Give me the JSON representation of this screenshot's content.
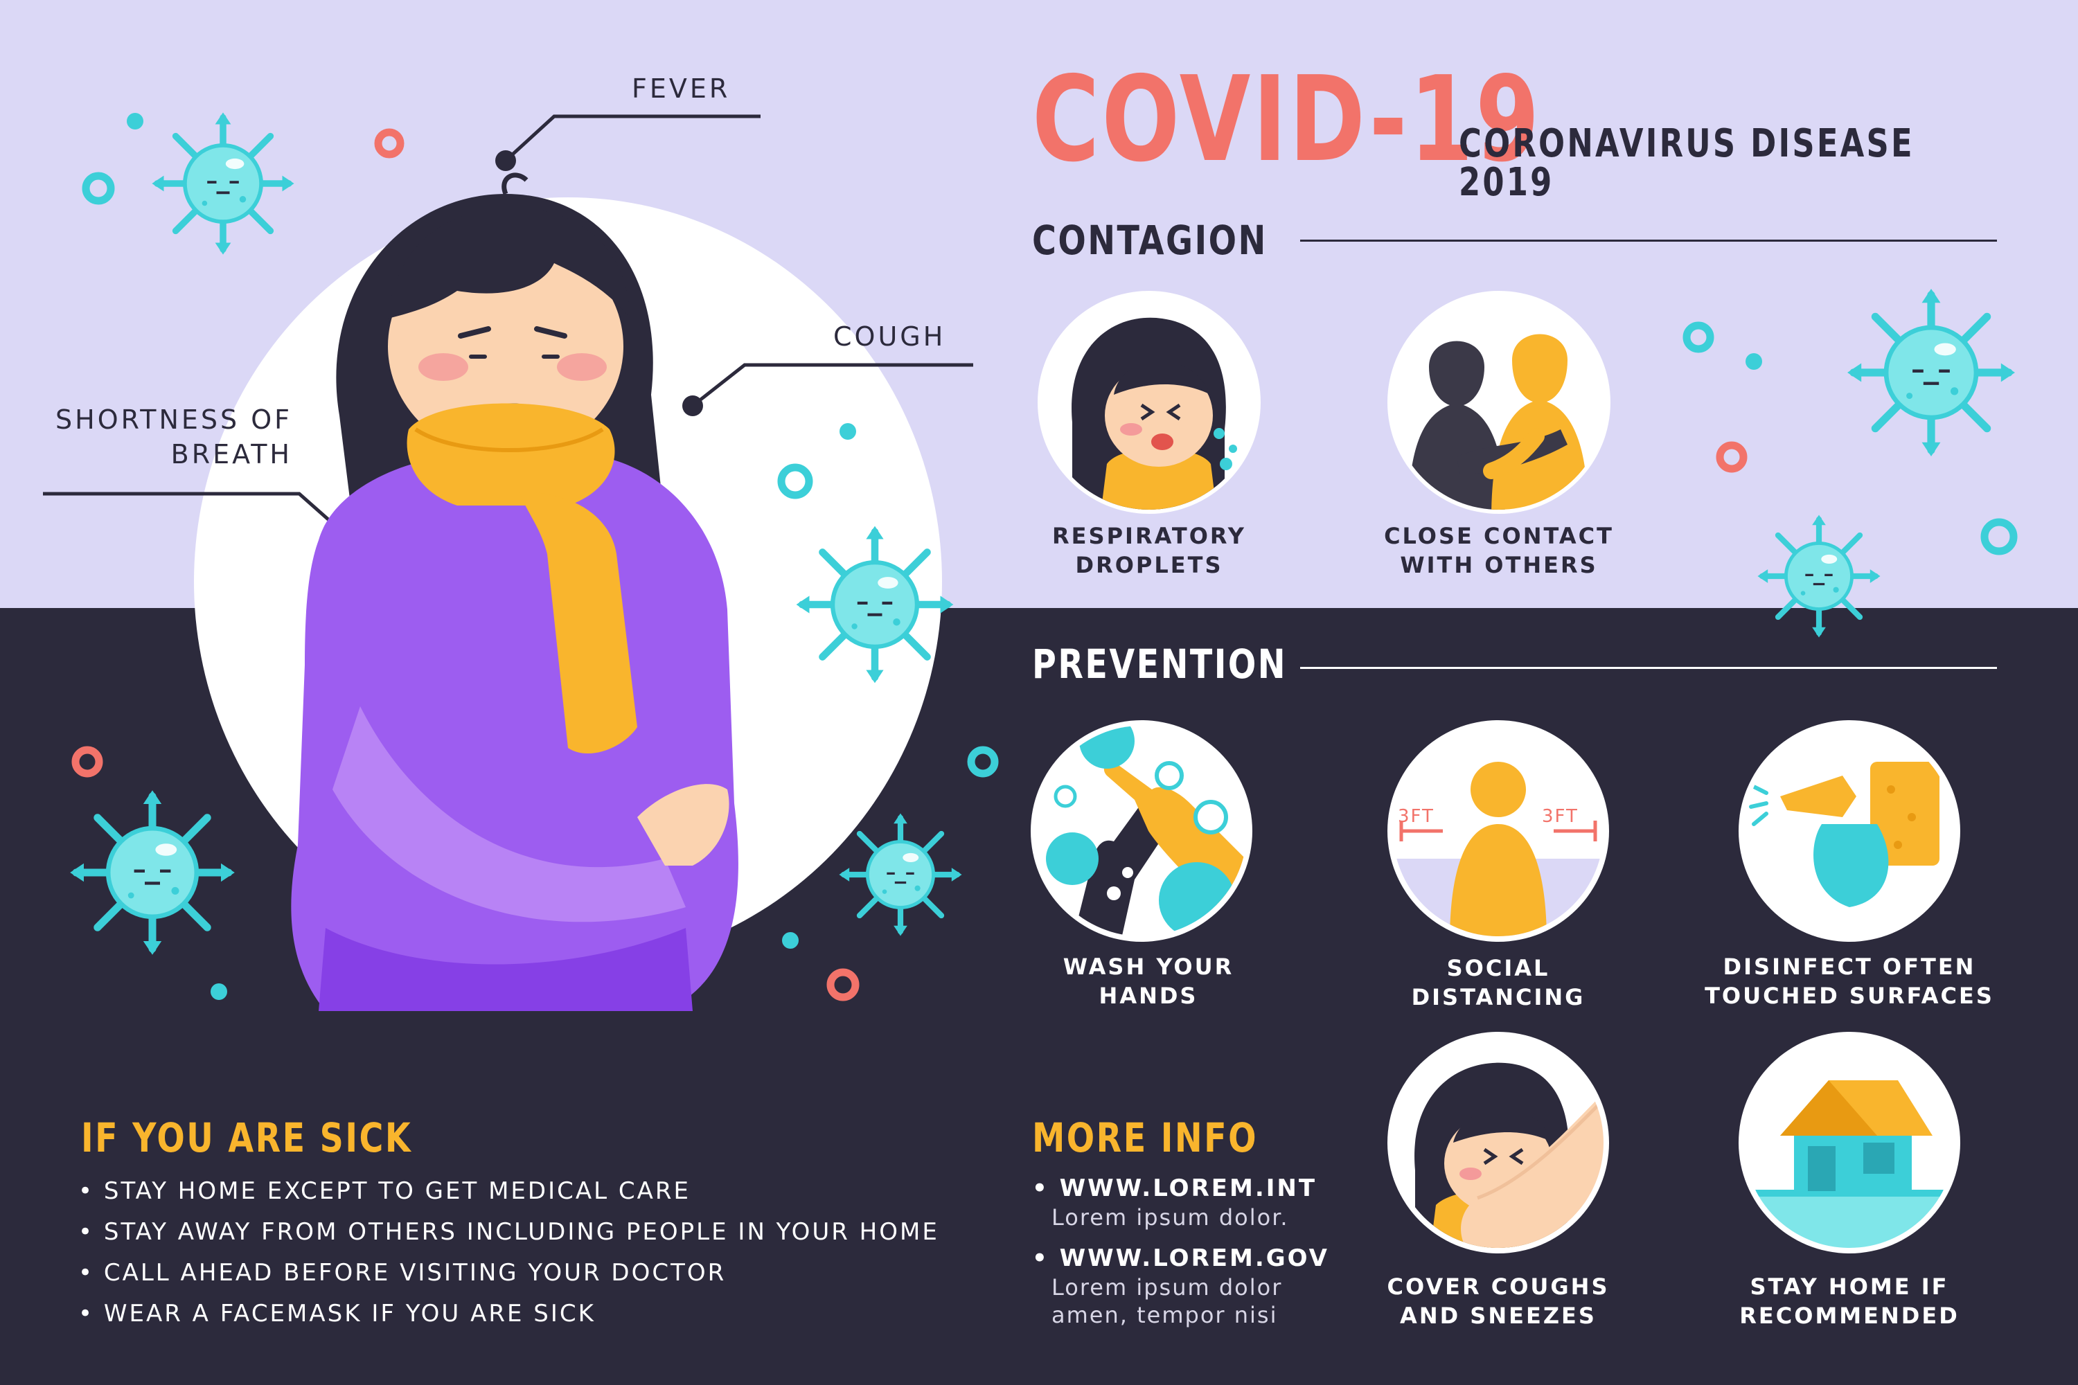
{
  "header": {
    "title": "COVID-19",
    "subtitle": "CORONAVIRUS DISEASE 2019"
  },
  "symptoms": {
    "fever": "FEVER",
    "cough": "COUGH",
    "shortness_line1": "SHORTNESS OF",
    "shortness_line2": "BREATH"
  },
  "contagion": {
    "heading": "CONTAGION",
    "items": [
      {
        "line1": "RESPIRATORY",
        "line2": "DROPLETS",
        "icon": "sneezing-person-icon"
      },
      {
        "line1": "CLOSE CONTACT",
        "line2": "WITH OTHERS",
        "icon": "hugging-people-icon"
      }
    ]
  },
  "prevention": {
    "heading": "PREVENTION",
    "items": [
      {
        "line1": "WASH YOUR",
        "line2": "HANDS",
        "icon": "washing-hands-icon"
      },
      {
        "line1": "SOCIAL",
        "line2": "DISTANCING",
        "icon": "social-distancing-icon",
        "distance_left": "3FT",
        "distance_right": "3FT"
      },
      {
        "line1": "DISINFECT OFTEN",
        "line2": "TOUCHED SURFACES",
        "icon": "spray-bottle-icon"
      },
      {
        "line1": "COVER COUGHS",
        "line2": "AND SNEEZES",
        "icon": "cover-cough-icon"
      },
      {
        "line1": "STAY HOME IF",
        "line2": "RECOMMENDED",
        "icon": "house-icon"
      }
    ]
  },
  "sick": {
    "heading": "IF YOU ARE SICK",
    "items": [
      "• STAY HOME EXCEPT TO GET MEDICAL CARE",
      "• STAY AWAY FROM OTHERS INCLUDING PEOPLE IN YOUR HOME",
      "• CALL AHEAD BEFORE VISITING YOUR DOCTOR",
      "• WEAR A FACEMASK IF YOU ARE SICK"
    ]
  },
  "more_info": {
    "heading": "MORE INFO",
    "links": [
      {
        "url": "• WWW.LOREM.INT",
        "desc": "Lorem ipsum dolor."
      },
      {
        "url": "• WWW.LOREM.GOV",
        "desc": "Lorem ipsum dolor\namen, tempor nisi"
      }
    ]
  },
  "colors": {
    "background_top": "#dbd8f6",
    "background_bottom": "#2c2a3c",
    "accent_coral": "#f2736a",
    "accent_yellow": "#f9b52d",
    "virus_teal": "#3ccfd8",
    "sweater_purple": "#9d5df0"
  }
}
